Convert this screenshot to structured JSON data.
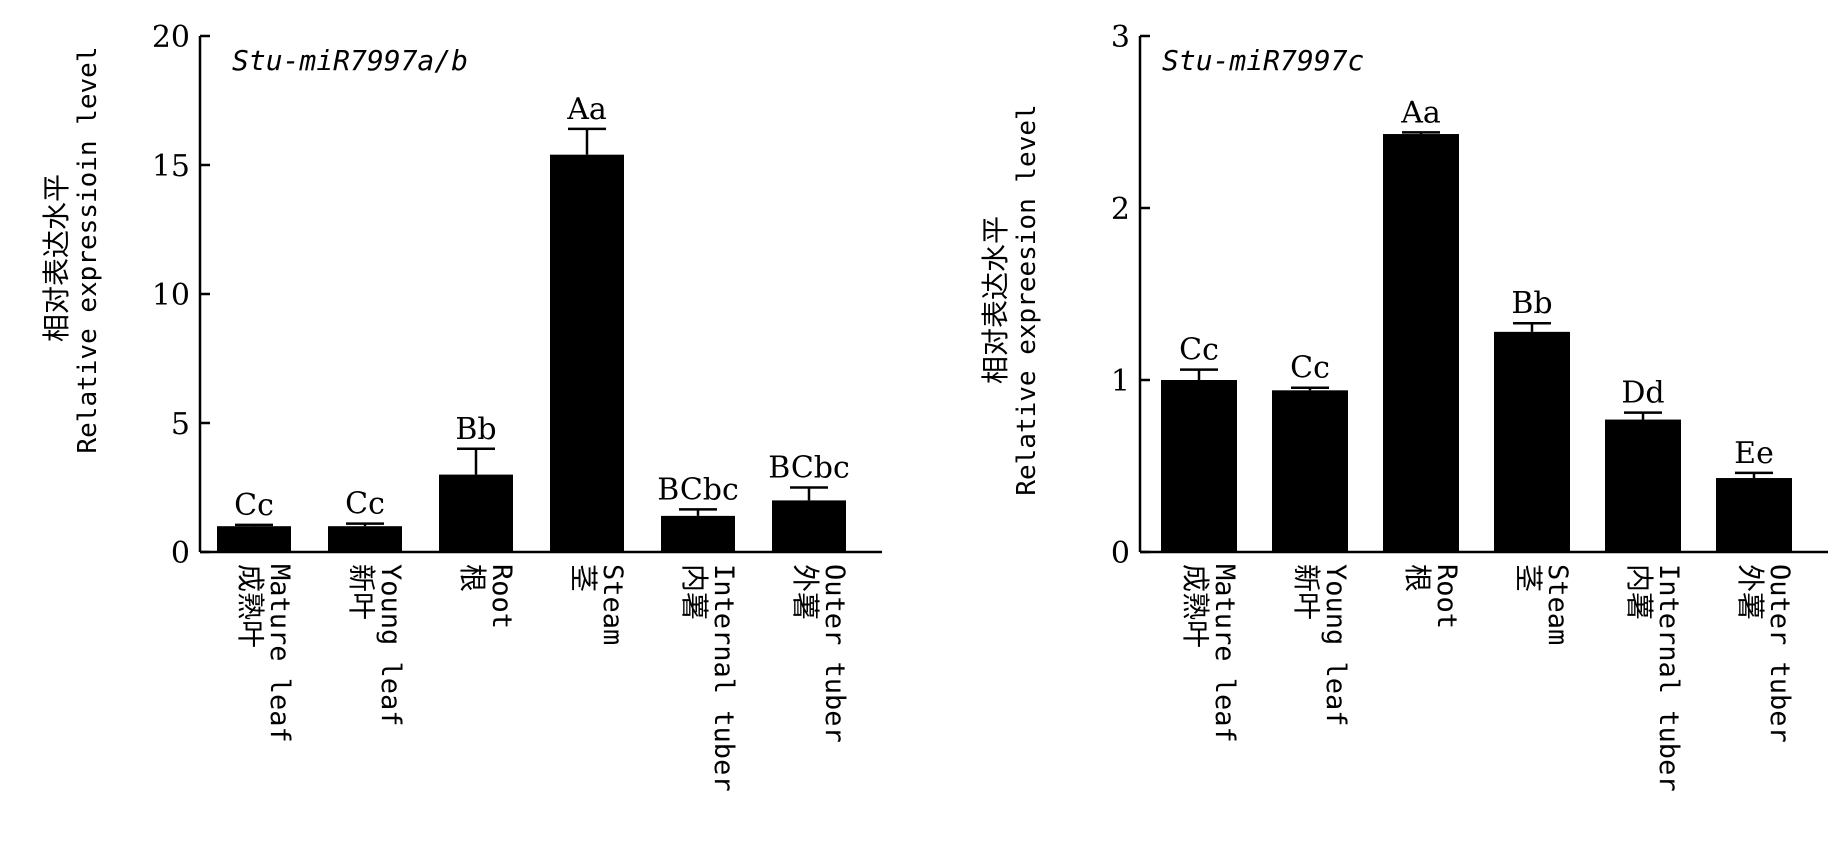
{
  "chart_data": [
    {
      "type": "bar",
      "title": "Stu-miR7997a/b",
      "ylabel_cn": "相对表达水平",
      "ylabel_en": "Relative expressioin level",
      "ylim": [
        0,
        20
      ],
      "yticks": [
        0,
        5,
        10,
        15,
        20
      ],
      "categories": [
        {
          "cn": "成熟叶",
          "en": "Mature leaf"
        },
        {
          "cn": "新叶",
          "en": "Young leaf"
        },
        {
          "cn": "根",
          "en": "Root"
        },
        {
          "cn": "茎",
          "en": "Steam"
        },
        {
          "cn": "内薯",
          "en": "Internal tuber"
        },
        {
          "cn": "外薯",
          "en": "Outer tuber"
        }
      ],
      "values": [
        1.0,
        1.0,
        3.0,
        15.4,
        1.4,
        2.0
      ],
      "errors": [
        0.05,
        0.1,
        1.0,
        1.0,
        0.25,
        0.5
      ],
      "significance": [
        "Cc",
        "Cc",
        "Bb",
        "Aa",
        "BCbc",
        "BCbc"
      ],
      "bar_color": "#000000"
    },
    {
      "type": "bar",
      "title": "Stu-miR7997c",
      "ylabel_cn": "相对表达水平",
      "ylabel_en": "Relative expreesion level",
      "ylim": [
        0,
        3
      ],
      "yticks": [
        0,
        1,
        2,
        3
      ],
      "categories": [
        {
          "cn": "成熟叶",
          "en": "Mature leaf"
        },
        {
          "cn": "新叶",
          "en": "Young leaf"
        },
        {
          "cn": "根",
          "en": "Root"
        },
        {
          "cn": "茎",
          "en": "Steam"
        },
        {
          "cn": "内薯",
          "en": "Internal tuber"
        },
        {
          "cn": "外薯",
          "en": "Outer tuber"
        }
      ],
      "values": [
        1.0,
        0.94,
        2.43,
        1.28,
        0.77,
        0.43
      ],
      "errors": [
        0.06,
        0.015,
        0.01,
        0.05,
        0.04,
        0.03
      ],
      "significance": [
        "Cc",
        "Cc",
        "Aa",
        "Bb",
        "Dd",
        "Ee"
      ],
      "bar_color": "#000000"
    }
  ]
}
